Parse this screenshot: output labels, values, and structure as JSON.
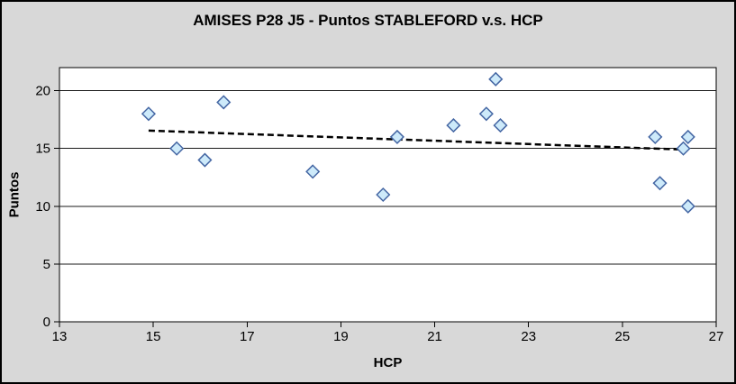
{
  "chart_data": {
    "type": "scatter",
    "title": "AMISES P28 J5 - Puntos STABLEFORD v.s. HCP",
    "xlabel": "HCP",
    "ylabel": "Puntos",
    "xlim": [
      13,
      27
    ],
    "ylim": [
      0,
      22
    ],
    "x_ticks": [
      13,
      15,
      17,
      19,
      21,
      23,
      25,
      27
    ],
    "y_ticks": [
      0,
      5,
      10,
      15,
      20
    ],
    "grid": "horizontal-only",
    "legend": "none",
    "series": [
      {
        "name": "Puntos STABLEFORD",
        "marker": "diamond",
        "points": [
          [
            14.9,
            18
          ],
          [
            15.5,
            15
          ],
          [
            16.1,
            14
          ],
          [
            16.5,
            19
          ],
          [
            18.4,
            13
          ],
          [
            19.9,
            11
          ],
          [
            20.2,
            16
          ],
          [
            21.4,
            17
          ],
          [
            22.1,
            18
          ],
          [
            22.3,
            21
          ],
          [
            22.4,
            17
          ],
          [
            25.7,
            16
          ],
          [
            25.8,
            12
          ],
          [
            26.3,
            15
          ],
          [
            26.4,
            16
          ],
          [
            26.4,
            10
          ]
        ]
      }
    ],
    "trendline": {
      "style": "dashed",
      "x1": 14.9,
      "y1": 16.55,
      "x2": 26.35,
      "y2": 14.9
    },
    "colors": {
      "background": "#d8d8d8",
      "plot_background": "#ffffff",
      "marker_fill": "#cdeafa",
      "marker_stroke": "#4466a3",
      "trendline": "#000000",
      "axis": "#000000",
      "gridline": "#1a1a1a",
      "text": "#000000"
    }
  }
}
